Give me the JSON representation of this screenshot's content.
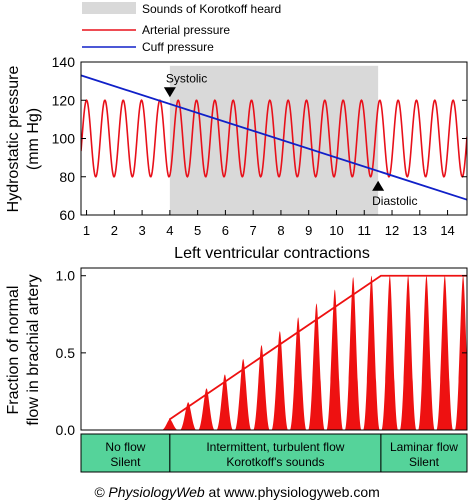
{
  "legend": {
    "position": "top",
    "entries": [
      {
        "label": "Sounds of Korotkoff heard",
        "kind": "patch",
        "color": "#d9d9d9"
      },
      {
        "label": "Arterial pressure",
        "kind": "line",
        "color": "#e8101a"
      },
      {
        "label": "Cuff pressure",
        "kind": "line",
        "color": "#1020c8"
      }
    ]
  },
  "colors": {
    "arterial": "#e8101a",
    "cuff": "#1020c8",
    "shade": "#d9d9d9",
    "flow_fill": "#ee1111",
    "phase_fill": "#55d39a"
  },
  "chart_data": [
    {
      "type": "line",
      "xlabel": "Left ventricular contractions",
      "ylabel": "Hydrostatic pressure",
      "ylabel2": "(mm Hg)",
      "xlim": [
        0.8,
        14.7
      ],
      "ylim": [
        60,
        140
      ],
      "xticks": [
        1,
        2,
        3,
        4,
        5,
        6,
        7,
        8,
        9,
        10,
        11,
        12,
        13,
        14
      ],
      "yticks": [
        60,
        80,
        100,
        120,
        140
      ],
      "grid": false,
      "series": [
        {
          "name": "Arterial pressure",
          "kind": "sine",
          "min": 80,
          "max": 120,
          "period": 0.66,
          "peak_at": 1.0
        },
        {
          "name": "Cuff pressure",
          "x": [
            0.8,
            14.7
          ],
          "y": [
            133,
            68
          ]
        }
      ],
      "shaded_region": {
        "label": "Sounds of Korotkoff heard",
        "x": [
          4.0,
          11.5
        ],
        "y": [
          60,
          138
        ]
      },
      "annotations": [
        {
          "text": "Systolic",
          "x": 4.0,
          "y": 120
        },
        {
          "text": "Diastolic",
          "x": 11.5,
          "y": 80
        }
      ]
    },
    {
      "type": "area",
      "ylabel": "Fraction of normal",
      "ylabel2": "flow in brachial artery",
      "ylim": [
        0,
        1.05
      ],
      "yticks": [
        "0.0",
        "0.5",
        "1.0"
      ],
      "grid": false,
      "envelope": {
        "x": [
          4.0,
          11.6,
          14.7
        ],
        "y": [
          0.07,
          1.0,
          1.0
        ]
      },
      "pulses": [
        {
          "x": 4.0,
          "y": 0.07
        },
        {
          "x": 4.66,
          "y": 0.18
        },
        {
          "x": 5.32,
          "y": 0.27
        },
        {
          "x": 5.98,
          "y": 0.36
        },
        {
          "x": 6.64,
          "y": 0.46
        },
        {
          "x": 7.3,
          "y": 0.55
        },
        {
          "x": 7.96,
          "y": 0.64
        },
        {
          "x": 8.62,
          "y": 0.73
        },
        {
          "x": 9.28,
          "y": 0.82
        },
        {
          "x": 9.94,
          "y": 0.91
        },
        {
          "x": 10.6,
          "y": 0.99
        },
        {
          "x": 11.26,
          "y": 1.0
        },
        {
          "x": 11.92,
          "y": 1.0
        },
        {
          "x": 12.58,
          "y": 1.0
        },
        {
          "x": 13.24,
          "y": 1.0
        },
        {
          "x": 13.9,
          "y": 1.0
        },
        {
          "x": 14.56,
          "y": 1.0
        }
      ]
    }
  ],
  "phases": [
    {
      "line1": "No flow",
      "line2": "Silent",
      "x_start": 0.8,
      "x_end": 4.0
    },
    {
      "line1": "Intermittent, turbulent flow",
      "line2": "Korotkoff's sounds",
      "x_start": 4.0,
      "x_end": 11.6
    },
    {
      "line1": "Laminar flow",
      "line2": "Silent",
      "x_start": 11.6,
      "x_end": 14.7
    }
  ],
  "footer": {
    "prefix": "© PhysiologyWeb",
    "middle": " at ",
    "url": "www.physiologyweb.com"
  }
}
